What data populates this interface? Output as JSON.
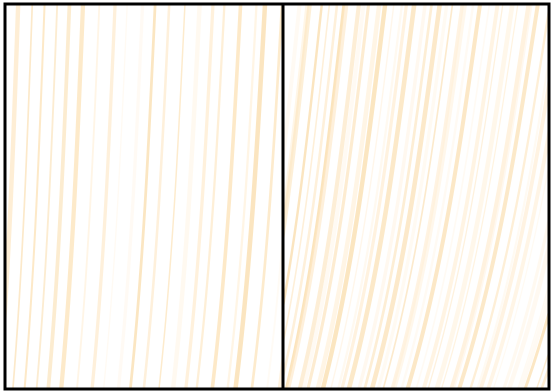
{
  "image": {
    "background_color": "#ffffff",
    "frame_color": "#000000",
    "stripe_colors": [
      "#fde8c6",
      "#fbe3bb",
      "#fff1dc",
      "#fff8ee"
    ],
    "panels": [
      {
        "name": "left-panel",
        "stripe_density": "sparse"
      },
      {
        "name": "right-panel",
        "stripe_density": "dense"
      }
    ]
  }
}
